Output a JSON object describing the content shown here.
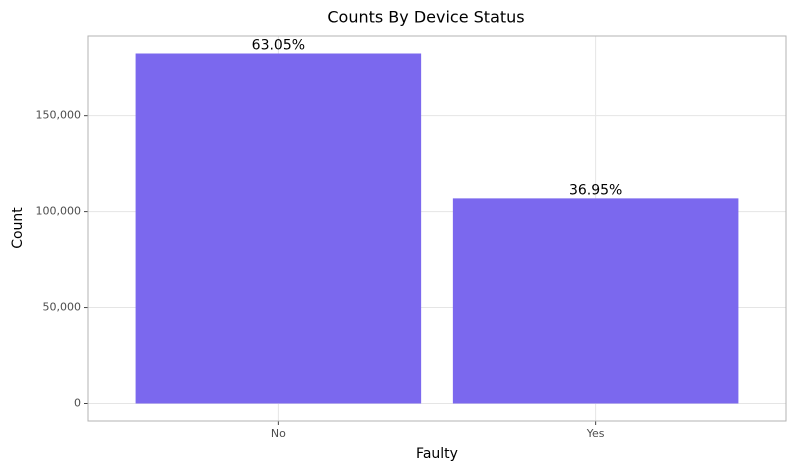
{
  "chart_data": {
    "type": "bar",
    "title": "Counts By Device Status",
    "x_label": "Faulty",
    "y_label": "Count",
    "categories": [
      "No",
      "Yes"
    ],
    "values": [
      182400,
      106900
    ],
    "value_labels": [
      "63.05%",
      "36.95%"
    ],
    "color": "#7b68ee",
    "ylim": [
      -9120,
      191520
    ],
    "yticks": [
      0,
      {
        "value": 50000,
        "label": "50,000"
      },
      {
        "value": 100000,
        "label": "100,000"
      },
      {
        "value": 150000,
        "label": "150,000"
      }
    ],
    "grid": true
  }
}
